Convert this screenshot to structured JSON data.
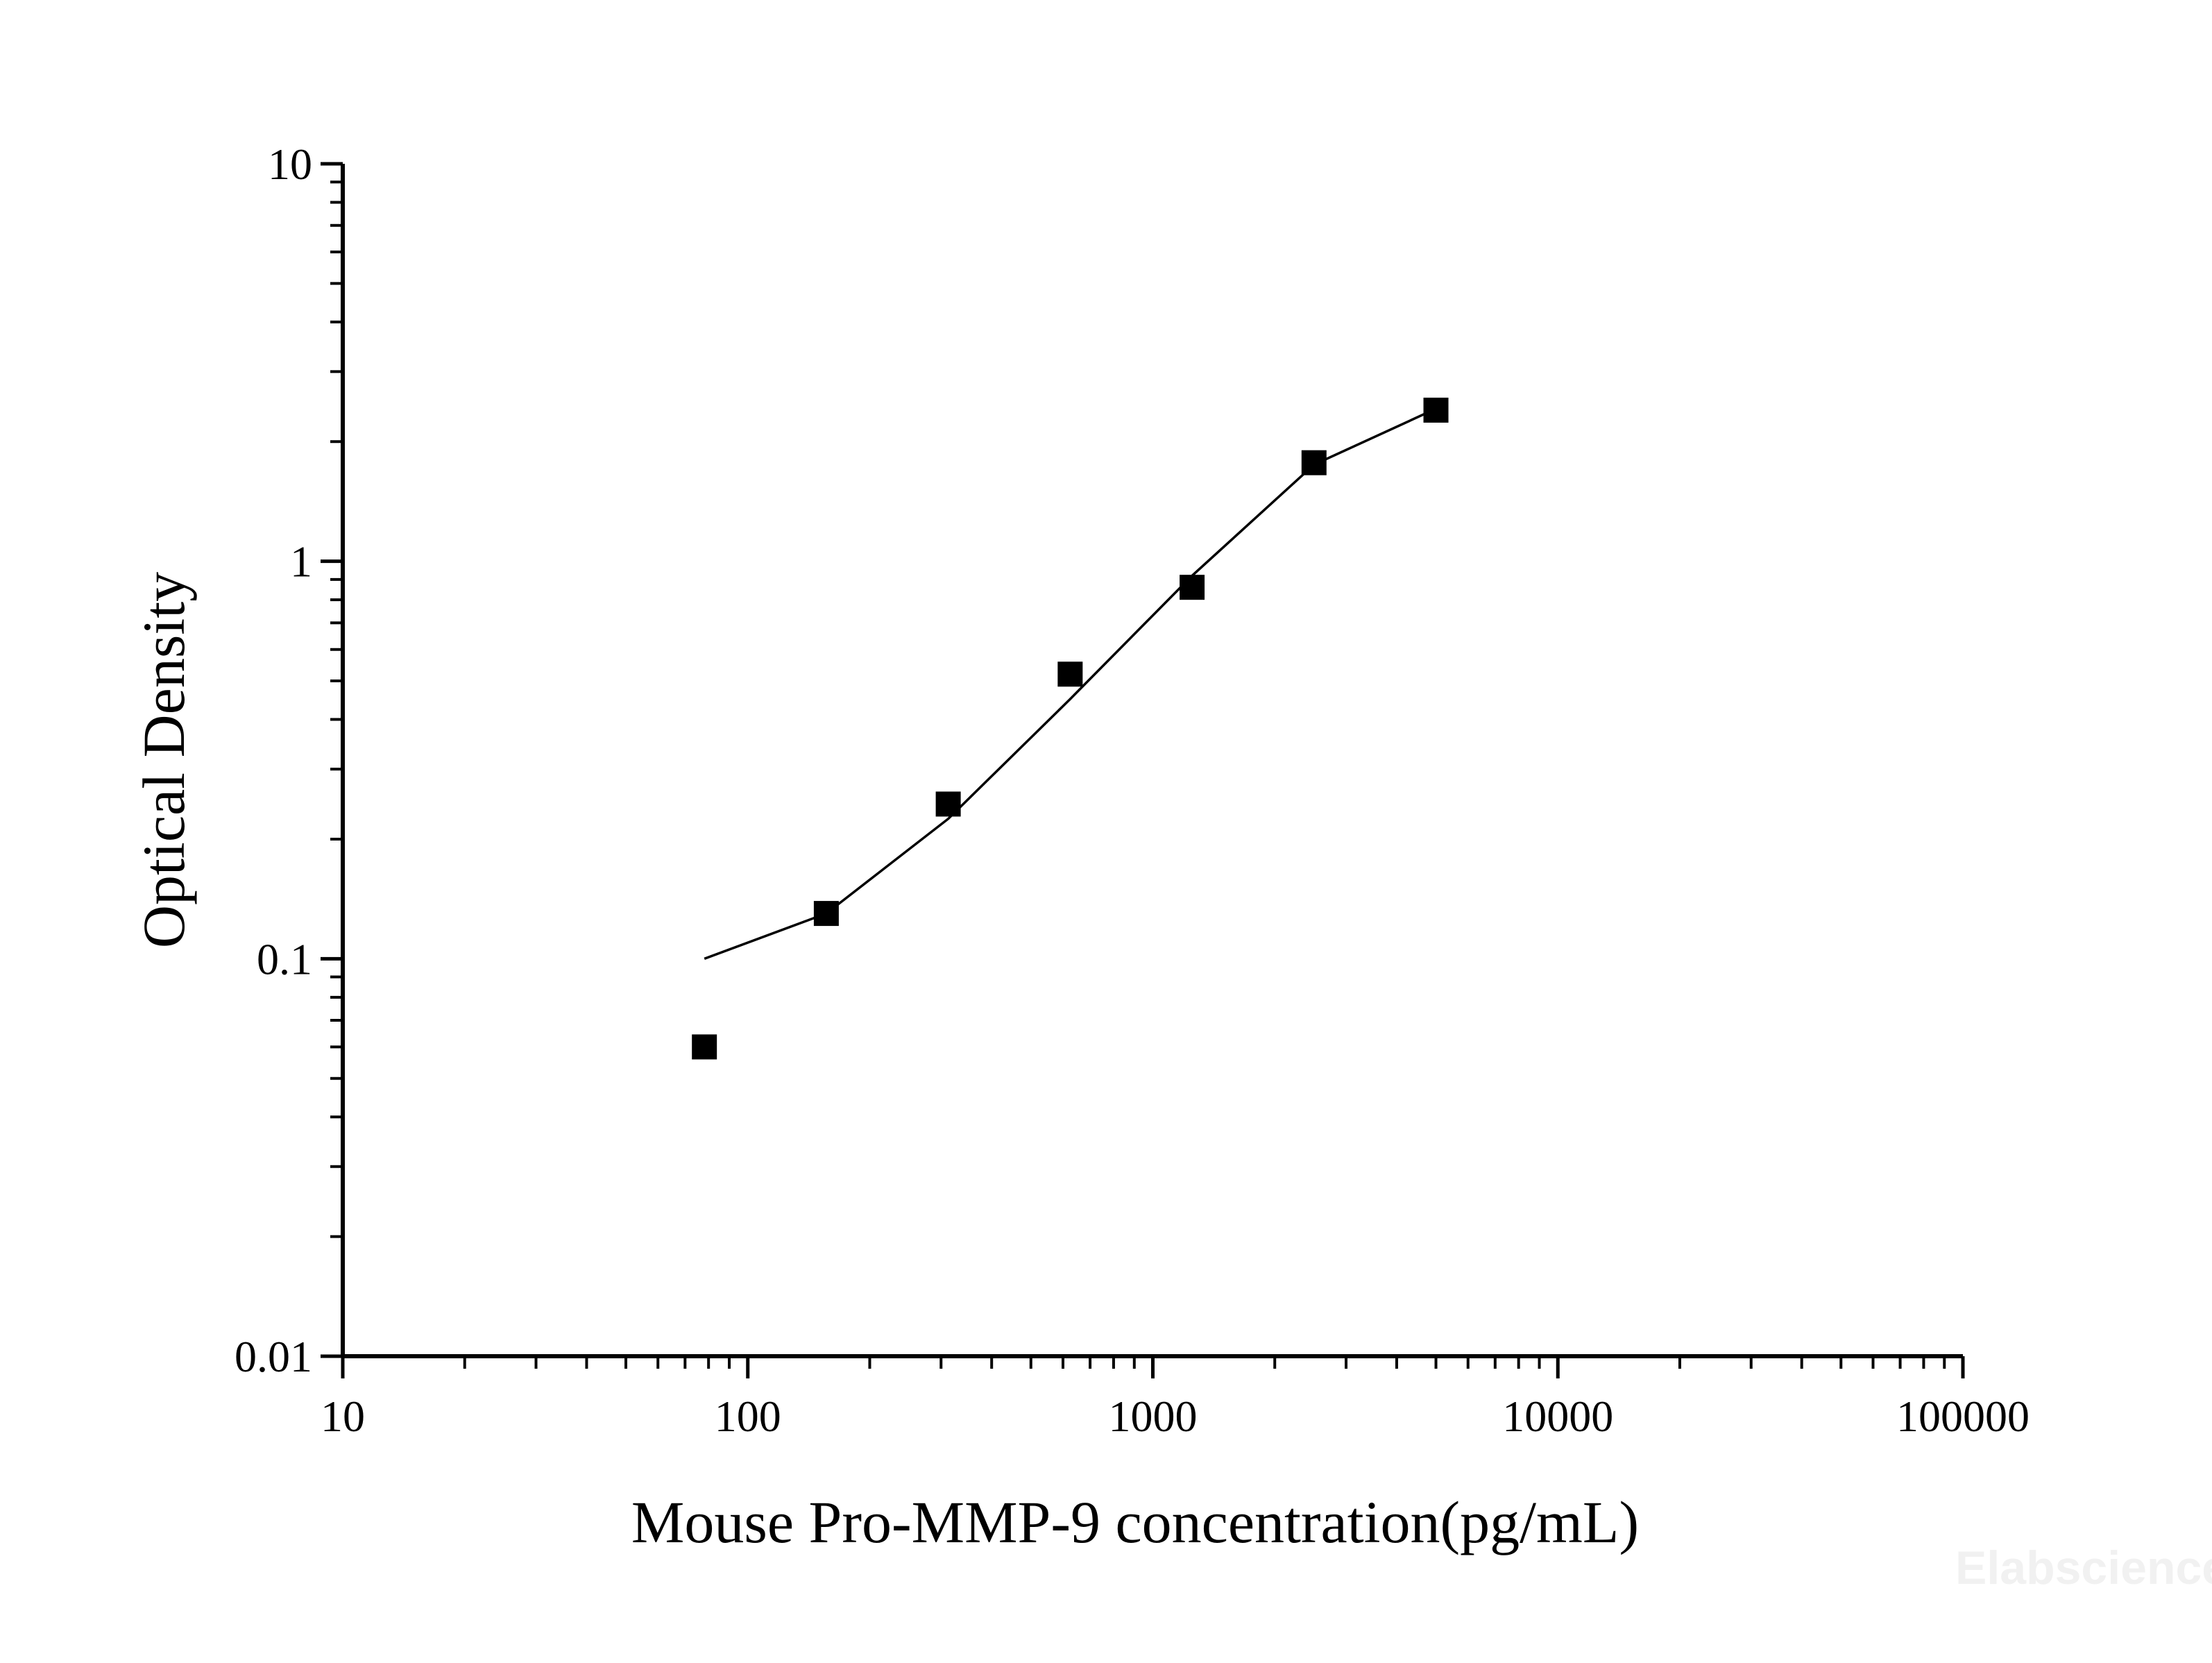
{
  "chart_data": {
    "type": "scatter",
    "x_scale": "log",
    "y_scale": "log",
    "xlabel": "Mouse Pro-MMP-9 concentration(pg/mL)",
    "ylabel": "Optical Density",
    "xlim": [
      10,
      100000
    ],
    "ylim": [
      0.01,
      10
    ],
    "x_ticks": [
      "10",
      "100",
      "1000",
      "10000",
      "100000"
    ],
    "y_ticks": [
      "0.01",
      "0.1",
      "1",
      "10"
    ],
    "grid": false,
    "legend": "none",
    "series": [
      {
        "type": "scatter",
        "marker": "square",
        "color": "#000000",
        "x": [
          78.13,
          156.25,
          312.5,
          625,
          1250,
          2500,
          5000
        ],
        "y": [
          0.06,
          0.13,
          0.245,
          0.52,
          0.86,
          1.77,
          2.4
        ]
      },
      {
        "type": "line",
        "color": "#000000",
        "x": [
          78.13,
          156.25,
          312.5,
          625,
          1250,
          2500,
          5000
        ],
        "y": [
          0.1,
          0.13,
          0.225,
          0.45,
          0.92,
          1.75,
          2.42
        ]
      }
    ]
  },
  "watermark": "Elabscience"
}
